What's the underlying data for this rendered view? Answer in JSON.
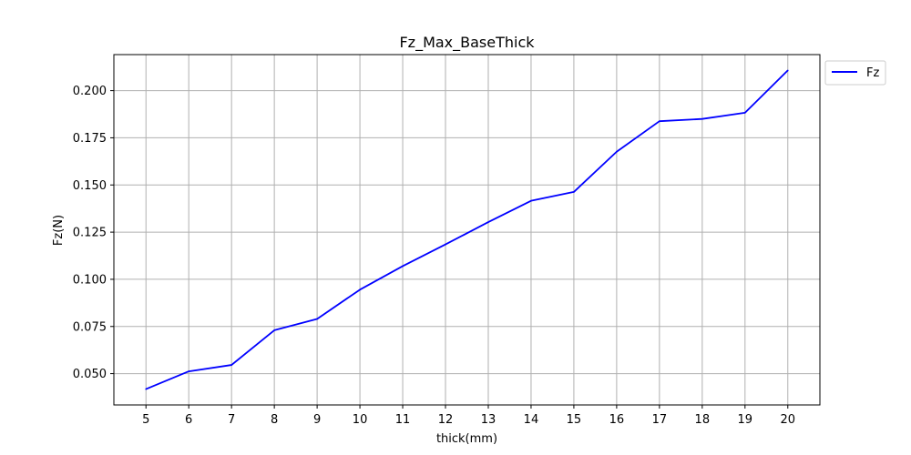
{
  "chart_data": {
    "type": "line",
    "title": "Fz_Max_BaseThick",
    "xlabel": "thick(mm)",
    "ylabel": "Fz(N)",
    "x": [
      5,
      6,
      7,
      8,
      9,
      10,
      11,
      12,
      13,
      14,
      15,
      16,
      17,
      18,
      19,
      20
    ],
    "series": [
      {
        "name": "Fz",
        "color": "#0000ff",
        "values": [
          0.0418,
          0.0512,
          0.0546,
          0.073,
          0.079,
          0.0945,
          0.107,
          0.1185,
          0.1303,
          0.1416,
          0.1463,
          0.1676,
          0.1838,
          0.185,
          0.1883,
          0.2107
        ]
      }
    ],
    "xlim": [
      4.25,
      20.75
    ],
    "ylim": [
      0.0334,
      0.2191
    ],
    "xticks": [
      5,
      6,
      7,
      8,
      9,
      10,
      11,
      12,
      13,
      14,
      15,
      16,
      17,
      18,
      19,
      20
    ],
    "yticks": [
      "0.050",
      "0.075",
      "0.100",
      "0.125",
      "0.150",
      "0.175",
      "0.200"
    ],
    "ytick_values": [
      0.05,
      0.075,
      0.1,
      0.125,
      0.15,
      0.175,
      0.2
    ],
    "grid": true,
    "grid_color": "#b0b0b0",
    "legend_position": "outside-top-right"
  }
}
